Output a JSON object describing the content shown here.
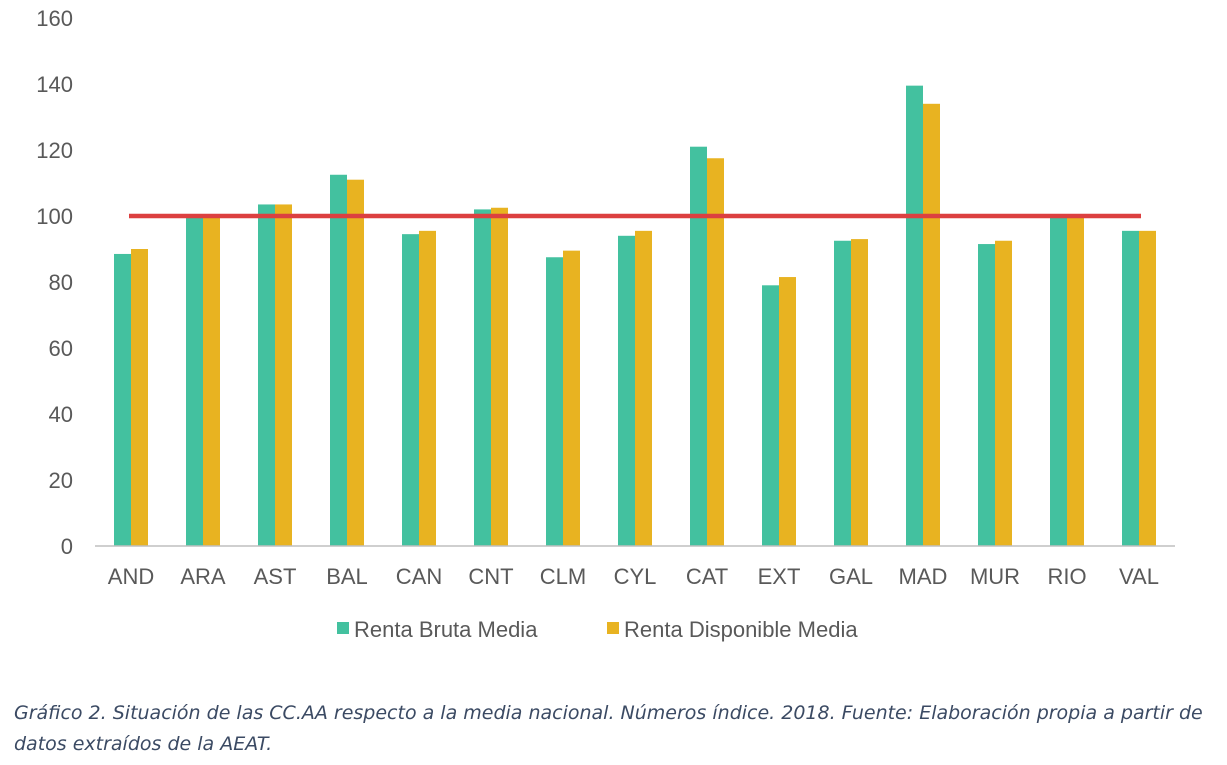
{
  "chart_data": {
    "type": "bar",
    "categories": [
      "AND",
      "ARA",
      "AST",
      "BAL",
      "CAN",
      "CNT",
      "CLM",
      "CYL",
      "CAT",
      "EXT",
      "GAL",
      "MAD",
      "MUR",
      "RIO",
      "VAL"
    ],
    "series": [
      {
        "name": "Renta Bruta Media",
        "color": "#43c19f",
        "values": [
          88.5,
          100,
          103.5,
          112.5,
          94.5,
          102,
          87.5,
          94,
          121,
          79,
          92.5,
          139.5,
          91.5,
          99.5,
          95.5
        ]
      },
      {
        "name": "Renta Disponible Media",
        "color": "#e8b321",
        "values": [
          90,
          100,
          103.5,
          111,
          95.5,
          102.5,
          89.5,
          95.5,
          117.5,
          81.5,
          93,
          134,
          92.5,
          99.5,
          95.5
        ]
      }
    ],
    "reference_line": {
      "value": 100,
      "color": "#dc4040"
    },
    "ylim": [
      0,
      160
    ],
    "yticks": [
      "0",
      "20",
      "40",
      "60",
      "80",
      "100",
      "120",
      "140",
      "160"
    ],
    "grid": false,
    "legend_position": "bottom",
    "title": "",
    "xlabel": "",
    "ylabel": ""
  },
  "caption": "Gráfico 2. Situación de las CC.AA respecto a la media nacional. Números índice. 2018. Fuente: Elaboración propia a partir de datos extraídos de la AEAT."
}
